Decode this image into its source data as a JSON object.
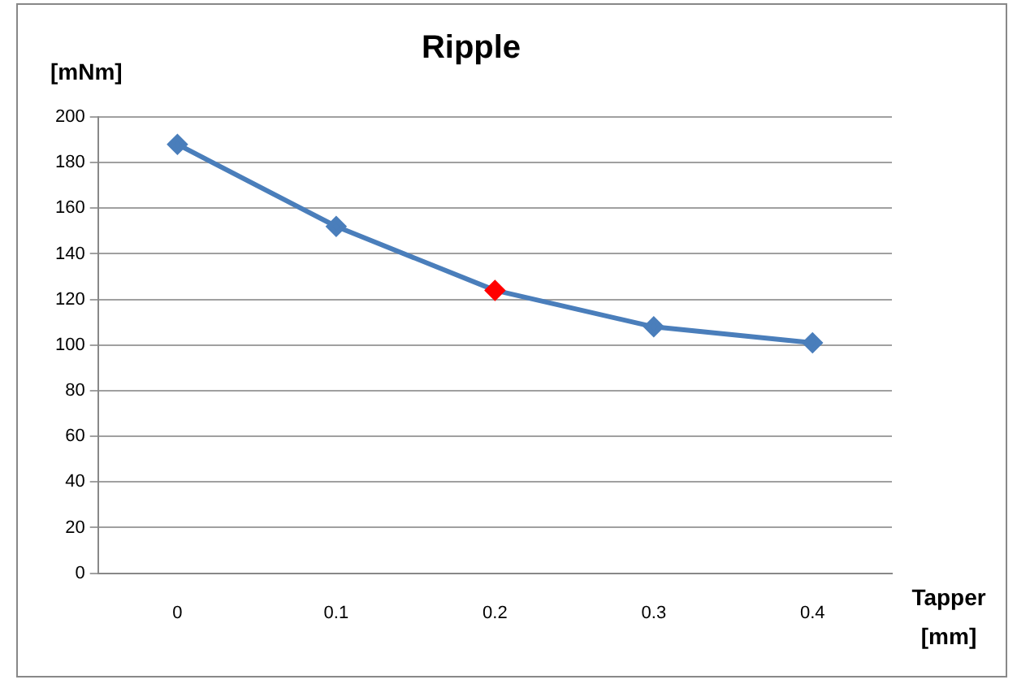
{
  "chart_data": {
    "type": "line",
    "title": "Ripple",
    "xlabel": "Tapper [mm]",
    "ylabel": "[mNm]",
    "categories": [
      "0",
      "0.1",
      "0.2",
      "0.3",
      "0.4"
    ],
    "series": [
      {
        "color": "#4a7ebb",
        "colors": [
          "#4a7ebb",
          "#4a7ebb",
          "#ff0000",
          "#4a7ebb",
          "#4a7ebb"
        ],
        "values": [
          188,
          152,
          124,
          108,
          101
        ]
      }
    ],
    "ylim": [
      0,
      200
    ],
    "yticks": [
      0,
      20,
      40,
      60,
      80,
      100,
      120,
      140,
      160,
      180,
      200
    ],
    "grid": "y",
    "legend": false,
    "marker": "diamond",
    "line_style": "solid"
  }
}
